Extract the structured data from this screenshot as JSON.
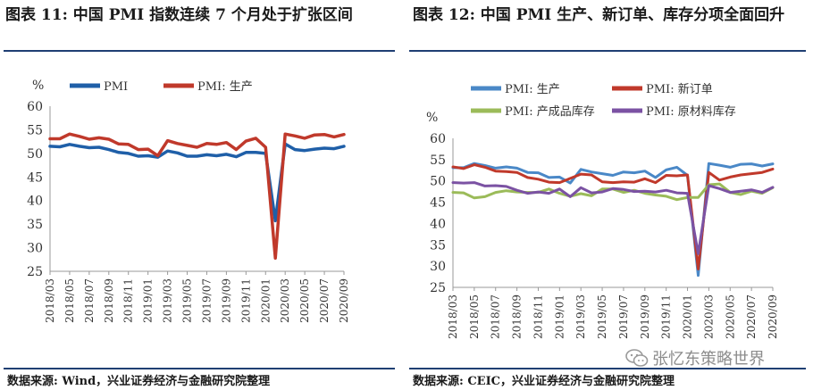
{
  "panels": [
    {
      "title": "图表 11:  中国 PMI 指数连续 7 个月处于扩张区间",
      "source": "数据来源:  Wind，兴业证券经济与金融研究院整理"
    },
    {
      "title": "图表 12:  中国 PMI 生产、新订单、库存分项全面回升",
      "source": "数据来源:  CEIC，兴业证券经济与金融研究院整理"
    }
  ],
  "watermark": {
    "text": "张忆东策略世界",
    "icon": "wechat-icon"
  },
  "chart_data": [
    {
      "type": "line",
      "title": "图表 11:  中国 PMI 指数连续 7 个月处于扩张区间",
      "ylabel": "%",
      "ylim": [
        25,
        60
      ],
      "yticks": [
        "60",
        "55",
        "50",
        "45",
        "40",
        "35",
        "30",
        "25"
      ],
      "grid": false,
      "legend": "top",
      "x": [
        "2018/03",
        "2018/04",
        "2018/05",
        "2018/06",
        "2018/07",
        "2018/08",
        "2018/09",
        "2018/10",
        "2018/11",
        "2018/12",
        "2019/01",
        "2019/02",
        "2019/03",
        "2019/04",
        "2019/05",
        "2019/06",
        "2019/07",
        "2019/08",
        "2019/09",
        "2019/10",
        "2019/11",
        "2019/12",
        "2020/01",
        "2020/02",
        "2020/03",
        "2020/04",
        "2020/05",
        "2020/06",
        "2020/07",
        "2020/08",
        "2020/09"
      ],
      "xtick_labels": [
        "2018/03",
        "2018/05",
        "2018/07",
        "2018/09",
        "2018/11",
        "2019/01",
        "2019/03",
        "2019/05",
        "2019/07",
        "2019/09",
        "2019/11",
        "2020/01",
        "2020/03",
        "2020/05",
        "2020/07",
        "2020/09"
      ],
      "series": [
        {
          "name": "PMI",
          "color": "#1f5fa8",
          "values": [
            51.5,
            51.4,
            51.9,
            51.5,
            51.2,
            51.3,
            50.8,
            50.2,
            50.0,
            49.4,
            49.5,
            49.2,
            50.5,
            50.1,
            49.4,
            49.4,
            49.7,
            49.5,
            49.8,
            49.3,
            50.2,
            50.2,
            50.0,
            35.7,
            52.0,
            50.8,
            50.6,
            50.9,
            51.1,
            51.0,
            51.5
          ]
        },
        {
          "name": "PMI: 生产",
          "color": "#c0392b",
          "values": [
            53.1,
            53.1,
            54.1,
            53.6,
            53.0,
            53.3,
            53.0,
            52.0,
            51.9,
            50.8,
            50.9,
            49.5,
            52.7,
            52.1,
            51.7,
            51.3,
            52.1,
            51.9,
            52.3,
            50.8,
            52.6,
            53.2,
            51.3,
            27.8,
            54.1,
            53.7,
            53.2,
            53.9,
            54.0,
            53.5,
            54.0
          ]
        }
      ]
    },
    {
      "type": "line",
      "title": "图表 12:  中国 PMI 生产、新订单、库存分项全面回升",
      "ylabel": "%",
      "ylim": [
        25,
        60
      ],
      "yticks": [
        "60",
        "55",
        "50",
        "45",
        "40",
        "35",
        "30",
        "25"
      ],
      "grid": false,
      "legend": "top",
      "x": [
        "2018/03",
        "2018/04",
        "2018/05",
        "2018/06",
        "2018/07",
        "2018/08",
        "2018/09",
        "2018/10",
        "2018/11",
        "2018/12",
        "2019/01",
        "2019/02",
        "2019/03",
        "2019/04",
        "2019/05",
        "2019/06",
        "2019/07",
        "2019/08",
        "2019/09",
        "2019/10",
        "2019/11",
        "2019/12",
        "2020/01",
        "2020/02",
        "2020/03",
        "2020/04",
        "2020/05",
        "2020/06",
        "2020/07",
        "2020/08",
        "2020/09"
      ],
      "xtick_labels": [
        "2018/03",
        "2018/05",
        "2018/07",
        "2018/09",
        "2018/11",
        "2019/01",
        "2019/03",
        "2019/05",
        "2019/07",
        "2019/09",
        "2019/11",
        "2020/01",
        "2020/03",
        "2020/05",
        "2020/07",
        "2020/09"
      ],
      "series": [
        {
          "name": "PMI: 生产",
          "color": "#4a88c7",
          "values": [
            53.1,
            53.1,
            54.1,
            53.6,
            53.0,
            53.3,
            53.0,
            52.0,
            51.9,
            50.8,
            50.9,
            49.5,
            52.7,
            52.1,
            51.7,
            51.3,
            52.1,
            51.9,
            52.3,
            50.8,
            52.6,
            53.2,
            51.3,
            27.8,
            54.1,
            53.7,
            53.2,
            53.9,
            54.0,
            53.5,
            54.0
          ]
        },
        {
          "name": "PMI: 新订单",
          "color": "#c0392b",
          "values": [
            53.3,
            52.9,
            53.8,
            53.2,
            52.3,
            52.2,
            52.0,
            50.8,
            50.4,
            49.7,
            49.6,
            50.6,
            51.6,
            51.4,
            49.8,
            49.6,
            49.8,
            49.7,
            50.5,
            49.6,
            51.3,
            51.2,
            51.4,
            29.3,
            52.0,
            50.2,
            50.9,
            51.4,
            51.7,
            52.0,
            52.8
          ]
        },
        {
          "name": "PMI: 产成品库存",
          "color": "#9bbb59",
          "values": [
            47.3,
            47.2,
            46.0,
            46.3,
            47.3,
            47.7,
            47.4,
            47.3,
            47.3,
            48.1,
            47.1,
            46.4,
            47.0,
            46.5,
            48.1,
            48.1,
            47.3,
            47.8,
            47.1,
            46.7,
            46.4,
            45.6,
            46.1,
            46.1,
            49.1,
            49.3,
            47.3,
            46.8,
            47.6,
            47.1,
            48.4
          ]
        },
        {
          "name": "PMI: 原材料库存",
          "color": "#7b52a3",
          "values": [
            49.6,
            49.5,
            49.6,
            48.8,
            48.9,
            48.7,
            47.8,
            47.1,
            47.4,
            47.1,
            48.1,
            46.3,
            48.4,
            47.2,
            47.4,
            48.2,
            48.0,
            47.5,
            47.6,
            47.4,
            47.8,
            47.2,
            47.1,
            32.9,
            48.9,
            48.2,
            47.3,
            47.6,
            47.9,
            47.3,
            48.5
          ]
        }
      ]
    }
  ]
}
